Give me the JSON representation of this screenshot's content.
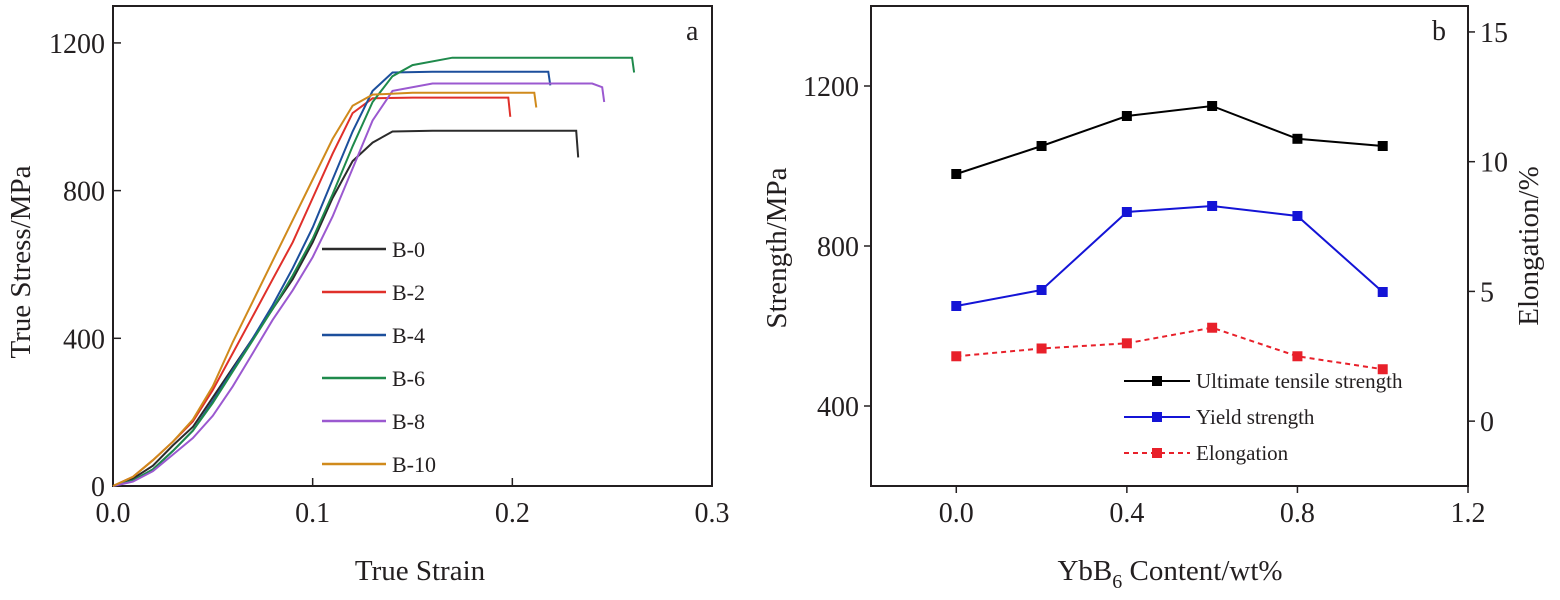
{
  "chart_data": [
    {
      "panel_label": "a",
      "type": "line",
      "xlabel": "True Strain",
      "ylabel": "True Stress/MPa",
      "xlim": [
        0.0,
        0.3
      ],
      "ylim": [
        0,
        1300
      ],
      "xticks": [
        "0.0",
        "0.1",
        "0.2",
        "0.3"
      ],
      "yticks": [
        "0",
        "400",
        "800",
        "1200"
      ],
      "legend_position": "center",
      "series": [
        {
          "name": "B-0",
          "color": "#2b2b2b",
          "x": [
            0,
            0.01,
            0.02,
            0.03,
            0.04,
            0.05,
            0.06,
            0.07,
            0.08,
            0.09,
            0.1,
            0.11,
            0.12,
            0.13,
            0.14,
            0.16,
            0.18,
            0.2,
            0.22,
            0.232,
            0.233
          ],
          "y": [
            0,
            20,
            55,
            110,
            160,
            240,
            320,
            400,
            480,
            560,
            660,
            780,
            880,
            930,
            960,
            962,
            962,
            962,
            962,
            962,
            890
          ]
        },
        {
          "name": "B-2",
          "color": "#e0302a",
          "x": [
            0,
            0.01,
            0.02,
            0.03,
            0.04,
            0.05,
            0.06,
            0.07,
            0.08,
            0.09,
            0.1,
            0.11,
            0.12,
            0.13,
            0.15,
            0.17,
            0.19,
            0.198,
            0.199
          ],
          "y": [
            0,
            25,
            70,
            120,
            175,
            260,
            360,
            460,
            560,
            660,
            780,
            900,
            1010,
            1050,
            1052,
            1052,
            1052,
            1052,
            1000
          ]
        },
        {
          "name": "B-4",
          "color": "#1c4f9c",
          "x": [
            0,
            0.01,
            0.02,
            0.03,
            0.04,
            0.05,
            0.06,
            0.07,
            0.08,
            0.09,
            0.1,
            0.11,
            0.12,
            0.13,
            0.14,
            0.16,
            0.18,
            0.2,
            0.218,
            0.219
          ],
          "y": [
            0,
            15,
            45,
            95,
            150,
            230,
            315,
            400,
            490,
            590,
            700,
            830,
            960,
            1070,
            1120,
            1122,
            1122,
            1122,
            1122,
            1085
          ]
        },
        {
          "name": "B-6",
          "color": "#1f8a4c",
          "x": [
            0,
            0.01,
            0.02,
            0.03,
            0.04,
            0.05,
            0.06,
            0.07,
            0.08,
            0.09,
            0.1,
            0.11,
            0.12,
            0.13,
            0.14,
            0.15,
            0.17,
            0.19,
            0.21,
            0.23,
            0.25,
            0.26,
            0.261
          ],
          "y": [
            0,
            15,
            45,
            95,
            150,
            225,
            310,
            395,
            480,
            570,
            670,
            790,
            920,
            1040,
            1110,
            1140,
            1160,
            1160,
            1160,
            1160,
            1160,
            1160,
            1120
          ]
        },
        {
          "name": "B-8",
          "color": "#9b59d0",
          "x": [
            0,
            0.01,
            0.02,
            0.03,
            0.04,
            0.05,
            0.06,
            0.07,
            0.08,
            0.09,
            0.1,
            0.11,
            0.12,
            0.13,
            0.14,
            0.16,
            0.18,
            0.2,
            0.22,
            0.24,
            0.245,
            0.246
          ],
          "y": [
            0,
            12,
            40,
            85,
            130,
            190,
            270,
            360,
            450,
            530,
            620,
            730,
            860,
            990,
            1070,
            1090,
            1090,
            1090,
            1090,
            1090,
            1080,
            1040
          ]
        },
        {
          "name": "B-10",
          "color": "#d08a1c",
          "x": [
            0,
            0.01,
            0.02,
            0.03,
            0.04,
            0.05,
            0.06,
            0.07,
            0.08,
            0.09,
            0.1,
            0.11,
            0.12,
            0.13,
            0.15,
            0.17,
            0.19,
            0.211,
            0.212
          ],
          "y": [
            0,
            25,
            70,
            120,
            180,
            270,
            390,
            500,
            610,
            720,
            830,
            940,
            1030,
            1060,
            1065,
            1065,
            1065,
            1065,
            1025
          ]
        }
      ]
    },
    {
      "panel_label": "b",
      "type": "line",
      "xlabel": "YbB",
      "xlabel_sub": "6",
      "xlabel_suffix": " Content/wt%",
      "ylabel": "Strength/MPa",
      "y2label": "Elongation/%",
      "xlim": [
        -0.2,
        1.2
      ],
      "ylim": [
        200,
        1400
      ],
      "y2lim": [
        -2.5,
        16
      ],
      "xticks": [
        "0.0",
        "0.4",
        "0.8",
        "1.2"
      ],
      "yticks": [
        "400",
        "800",
        "1200"
      ],
      "y2ticks": [
        "0",
        "5",
        "10",
        "15"
      ],
      "legend_position": "bottom-right",
      "x": [
        0.0,
        0.2,
        0.4,
        0.6,
        0.8,
        1.0
      ],
      "series": [
        {
          "name": "Ultimate tensile strength",
          "color": "#000000",
          "axis": "left",
          "dash": false,
          "values": [
            980,
            1050,
            1125,
            1150,
            1068,
            1050
          ]
        },
        {
          "name": "Yield strength",
          "color": "#1414d6",
          "axis": "left",
          "dash": false,
          "values": [
            650,
            690,
            885,
            900,
            875,
            685
          ]
        },
        {
          "name": "Elongation",
          "color": "#e8202a",
          "axis": "right",
          "dash": true,
          "values": [
            2.5,
            2.8,
            3.0,
            3.6,
            2.5,
            2.0
          ]
        }
      ]
    }
  ]
}
